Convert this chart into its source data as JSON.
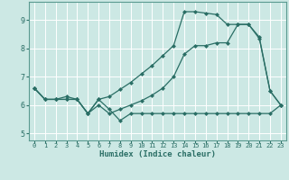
{
  "title": "",
  "xlabel": "Humidex (Indice chaleur)",
  "xlim": [
    -0.5,
    23.5
  ],
  "ylim": [
    4.75,
    9.65
  ],
  "yticks": [
    5,
    6,
    7,
    8,
    9
  ],
  "xticks": [
    0,
    1,
    2,
    3,
    4,
    5,
    6,
    7,
    8,
    9,
    10,
    11,
    12,
    13,
    14,
    15,
    16,
    17,
    18,
    19,
    20,
    21,
    22,
    23
  ],
  "bg_color": "#cce8e4",
  "grid_color": "#ffffff",
  "line_color": "#2a6e65",
  "line1_x": [
    0,
    1,
    2,
    3,
    4,
    5,
    6,
    7,
    8,
    9,
    10,
    11,
    12,
    13,
    14,
    15,
    16,
    17,
    18,
    19,
    20,
    21,
    22,
    23
  ],
  "line1_y": [
    6.6,
    6.2,
    6.2,
    6.2,
    6.2,
    5.7,
    6.2,
    5.85,
    5.45,
    5.7,
    5.7,
    5.7,
    5.7,
    5.7,
    5.7,
    5.7,
    5.7,
    5.7,
    5.7,
    5.7,
    5.7,
    5.7,
    5.7,
    6.0
  ],
  "line2_x": [
    0,
    1,
    2,
    3,
    4,
    5,
    6,
    7,
    8,
    9,
    10,
    11,
    12,
    13,
    14,
    15,
    16,
    17,
    18,
    19,
    20,
    21,
    22,
    23
  ],
  "line2_y": [
    6.6,
    6.2,
    6.2,
    6.3,
    6.2,
    5.7,
    6.0,
    5.7,
    5.85,
    6.0,
    6.15,
    6.35,
    6.6,
    7.0,
    7.8,
    8.1,
    8.1,
    8.2,
    8.2,
    8.85,
    8.85,
    8.4,
    6.5,
    6.0
  ],
  "line3_x": [
    0,
    1,
    2,
    3,
    4,
    5,
    6,
    7,
    8,
    9,
    10,
    11,
    12,
    13,
    14,
    15,
    16,
    17,
    18,
    19,
    20,
    21,
    22,
    23
  ],
  "line3_y": [
    6.6,
    6.2,
    6.2,
    6.2,
    6.2,
    5.7,
    6.2,
    6.3,
    6.55,
    6.8,
    7.1,
    7.4,
    7.75,
    8.1,
    9.3,
    9.3,
    9.25,
    9.2,
    8.85,
    8.85,
    8.85,
    8.35,
    6.5,
    6.0
  ]
}
